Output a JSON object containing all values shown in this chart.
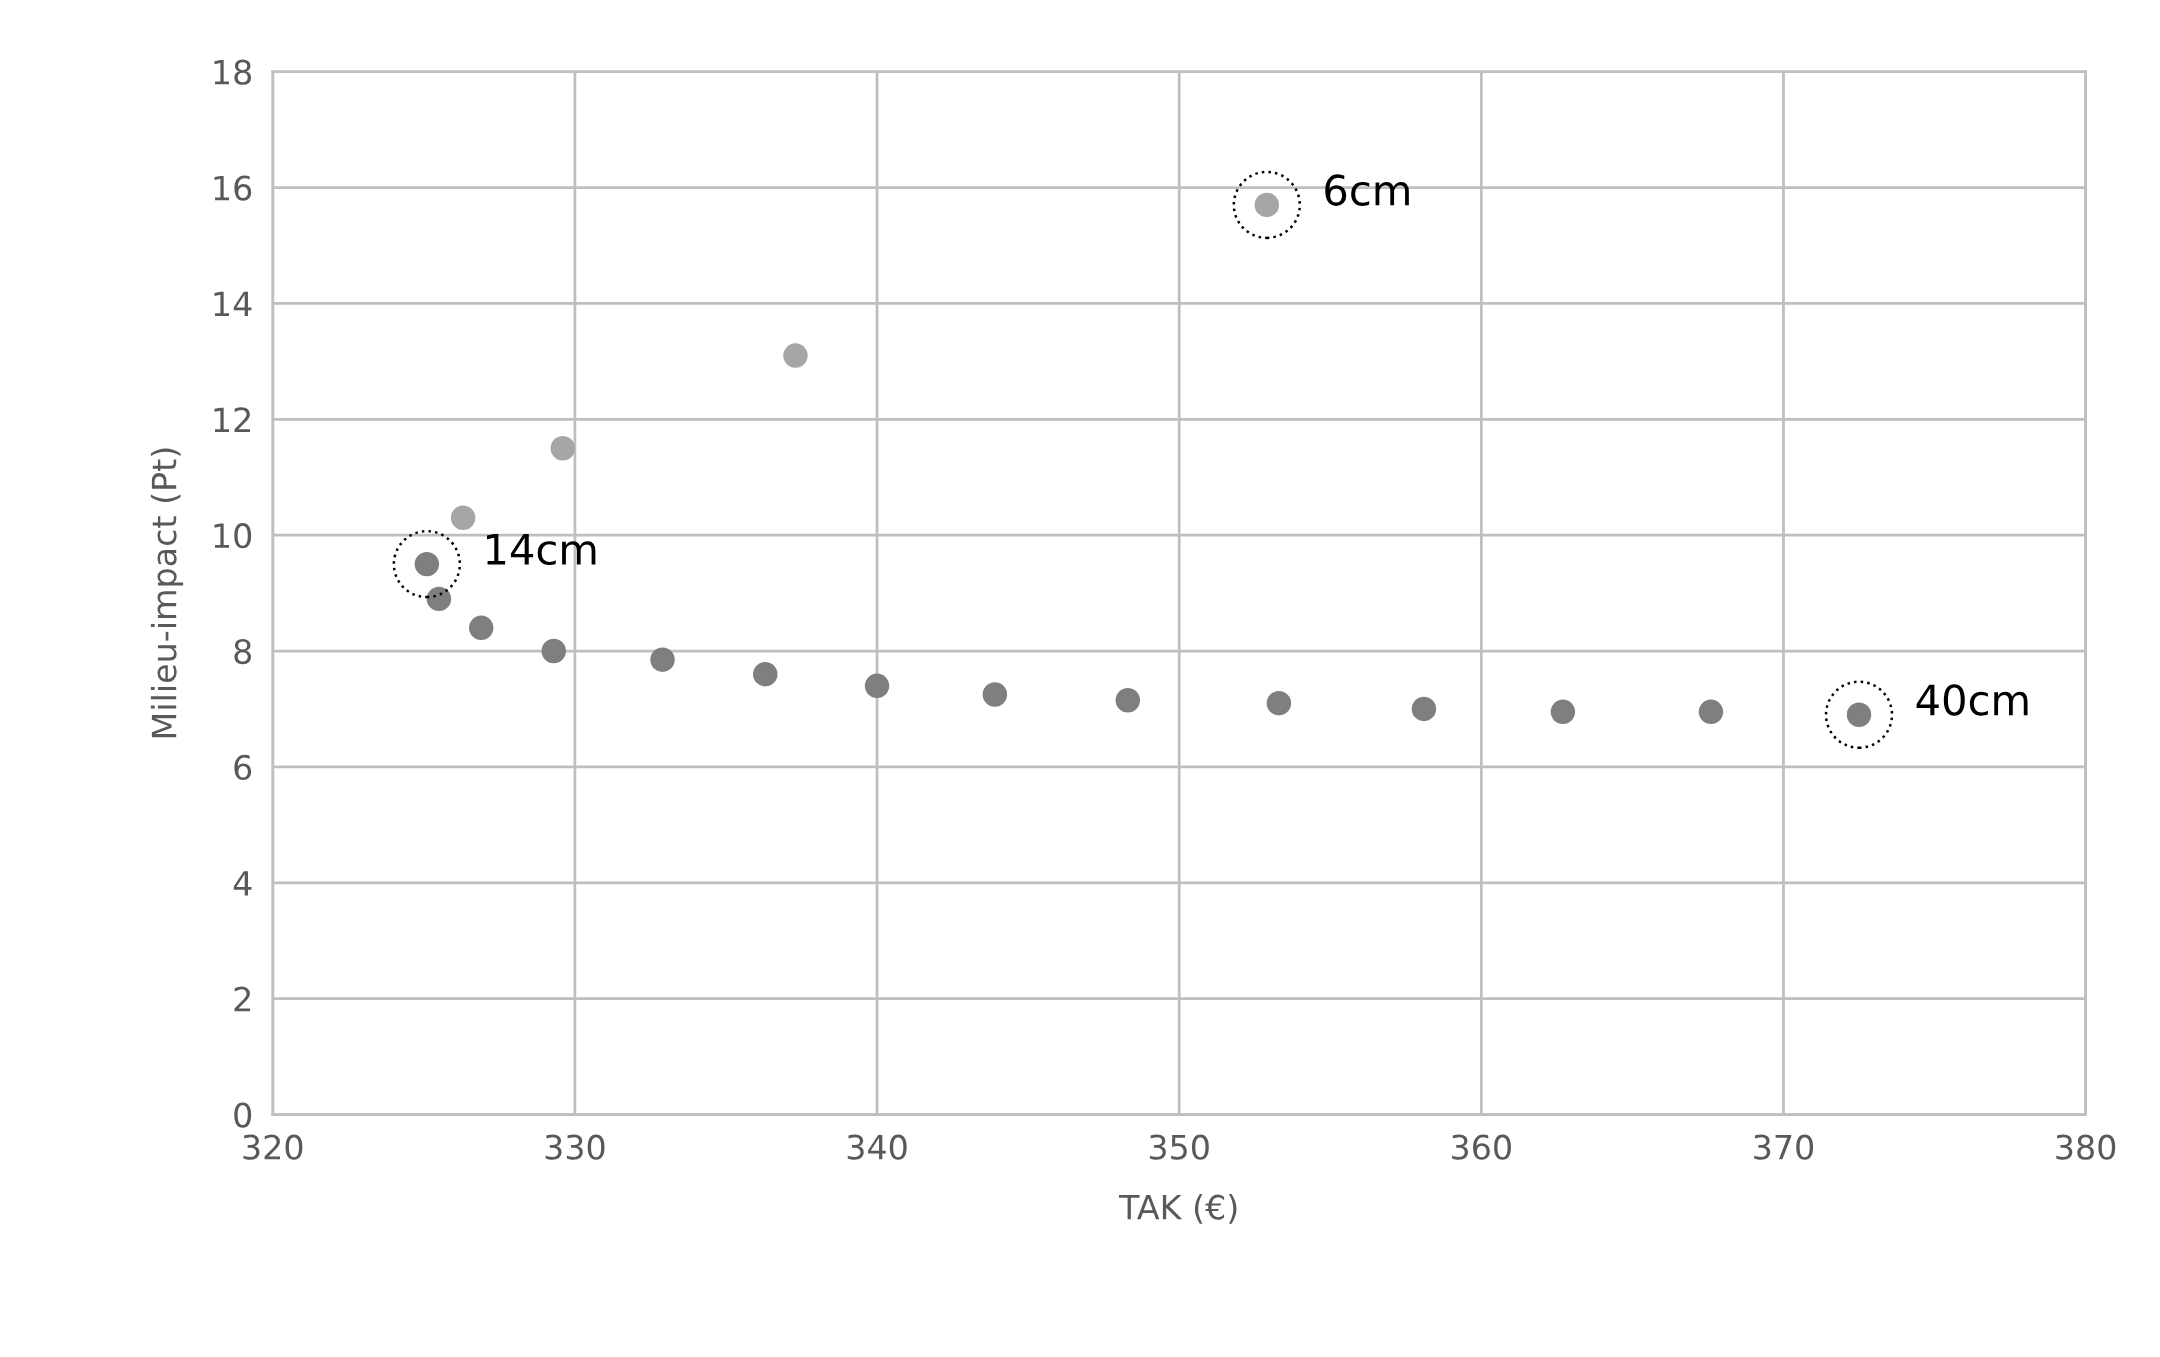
{
  "chart_data": {
    "type": "scatter",
    "xlabel": "TAK (€)",
    "ylabel": "Milieu-impact (Pt)",
    "xlim": [
      320,
      380
    ],
    "xticks": [
      320,
      330,
      340,
      350,
      360,
      370,
      380
    ],
    "ylim": [
      0,
      18
    ],
    "yticks": [
      0,
      2,
      4,
      6,
      8,
      10,
      12,
      14,
      16,
      18
    ],
    "grid": true,
    "legend": false,
    "marker": "circle",
    "series": [
      {
        "color": "#a6a6a6",
        "x": [
          326.3,
          329.6,
          337.3,
          352.9
        ],
        "values": [
          10.3,
          11.5,
          13.1,
          15.7
        ]
      },
      {
        "color": "#7f7f7f",
        "x": [
          325.1,
          325.5,
          326.9,
          329.3,
          332.9,
          336.3,
          340.0,
          343.9,
          348.3,
          353.3,
          358.1,
          362.7,
          367.6,
          372.5
        ],
        "values": [
          9.5,
          8.9,
          8.4,
          8.0,
          7.85,
          7.6,
          7.4,
          7.25,
          7.15,
          7.1,
          7.0,
          6.95,
          6.95,
          6.9
        ]
      }
    ],
    "annotations": [
      {
        "text": "6cm",
        "x": 352.9,
        "y": 15.7
      },
      {
        "text": "14cm",
        "x": 325.1,
        "y": 9.5
      },
      {
        "text": "40cm",
        "x": 372.5,
        "y": 6.9
      }
    ]
  }
}
